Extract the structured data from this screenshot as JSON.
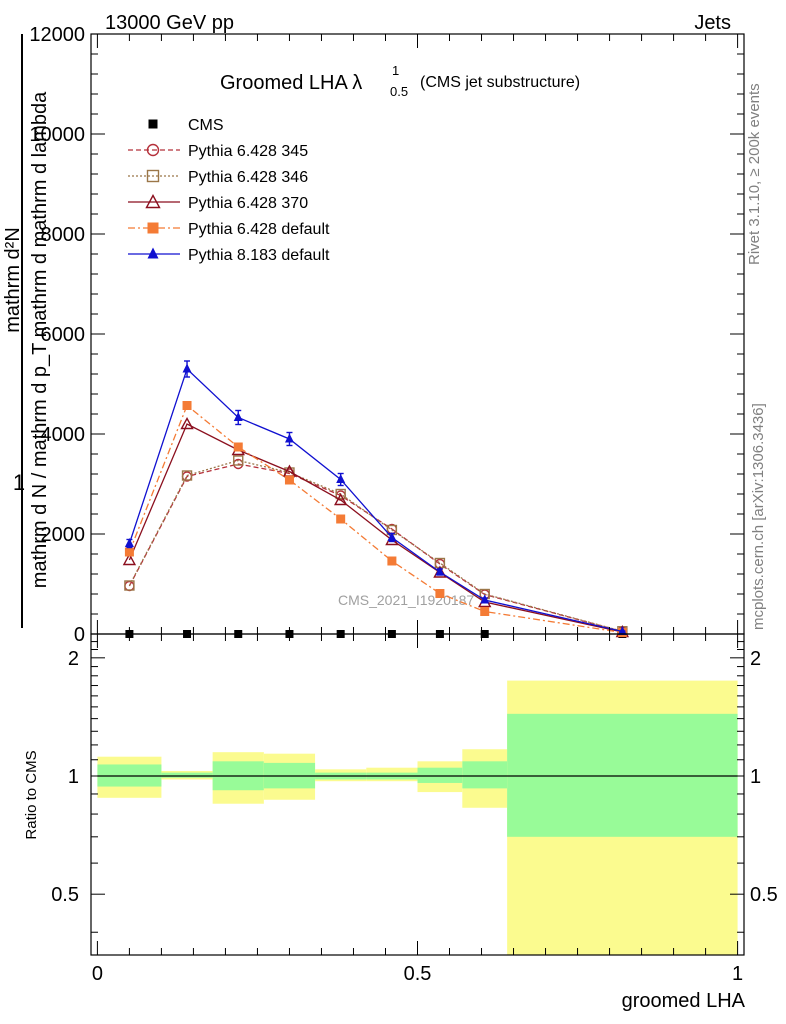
{
  "header": {
    "left": "13000 GeV pp",
    "right": "Jets"
  },
  "side_labels": {
    "rivet": "Rivet 3.1.10, ≥ 200k events",
    "mcplots": "mcplots.cern.ch [arXiv:1306.3436]"
  },
  "chart_data": [
    {
      "type": "line",
      "title": "Groomed LHA λ",
      "title_sup": "1",
      "title_sub": "0.5",
      "subtitle": "(CMS jet substructure)",
      "watermark": "CMS_2021_I1920187",
      "ylabel_main": "1",
      "ylabel_num": "mathrm d²N",
      "ylabel_den": "mathrm d N / mathrm d p_T mathrm d mathrm d lambda",
      "xlim": [
        -0.01,
        1.01
      ],
      "ylim": [
        0,
        12000
      ],
      "yticks": [
        0,
        2000,
        4000,
        6000,
        8000,
        10000,
        12000
      ],
      "ytick_labels": [
        "0",
        "2000",
        "4000",
        "6000",
        "8000",
        "10000",
        "12000"
      ],
      "x": [
        0.05,
        0.14,
        0.22,
        0.3,
        0.38,
        0.46,
        0.535,
        0.605,
        0.82
      ],
      "series": [
        {
          "name": "CMS",
          "color": "#000000",
          "marker": "square-filled",
          "dash": "none",
          "values": [
            0,
            0,
            0,
            0,
            0,
            0,
            0,
            0,
            0
          ]
        },
        {
          "name": "Pythia 6.428 345",
          "color": "#b5303a",
          "marker": "circle-open",
          "dash": "5,3",
          "values": [
            960,
            3150,
            3400,
            3210,
            2770,
            2100,
            1400,
            790,
            50
          ]
        },
        {
          "name": "Pythia 6.428 346",
          "color": "#9b7648",
          "marker": "square-open",
          "dash": "2,2",
          "values": [
            970,
            3170,
            3470,
            3230,
            2800,
            2080,
            1420,
            800,
            55
          ]
        },
        {
          "name": "Pythia 6.428 370",
          "color": "#8b0f1e",
          "marker": "triangle-open",
          "dash": "none",
          "values": [
            1480,
            4200,
            3680,
            3250,
            2680,
            1880,
            1230,
            640,
            40
          ]
        },
        {
          "name": "Pythia 6.428 default",
          "color": "#f47b35",
          "marker": "square-filled",
          "dash": "7,3,2,3",
          "values": [
            1640,
            4570,
            3740,
            3080,
            2300,
            1460,
            810,
            450,
            30
          ]
        },
        {
          "name": "Pythia 8.183 default",
          "color": "#1010d0",
          "marker": "triangle-filled",
          "dash": "none",
          "values": [
            1810,
            5300,
            4330,
            3900,
            3090,
            1930,
            1240,
            680,
            50
          ]
        }
      ],
      "errors": {
        "Pythia 8.183 default": [
          80,
          160,
          140,
          130,
          120,
          80,
          60,
          40,
          10
        ]
      }
    },
    {
      "type": "area",
      "ylabel": "Ratio to CMS",
      "xlabel": "groomed LHA",
      "xlim": [
        -0.01,
        1.01
      ],
      "ylim": [
        0.35,
        2.3
      ],
      "yticks": [
        0.5,
        1,
        2
      ],
      "ytick_labels": [
        "0.5",
        "1",
        "2"
      ],
      "xticks": [
        0,
        0.5,
        1
      ],
      "xtick_labels": [
        "0",
        "0.5",
        "1"
      ],
      "bin_edges": [
        0.0,
        0.1,
        0.18,
        0.26,
        0.34,
        0.42,
        0.5,
        0.57,
        0.64,
        1.0
      ],
      "inner_band": [
        [
          0.94,
          1.07
        ],
        [
          0.99,
          1.02
        ],
        [
          0.92,
          1.09
        ],
        [
          0.93,
          1.08
        ],
        [
          0.98,
          1.02
        ],
        [
          0.98,
          1.02
        ],
        [
          0.96,
          1.05
        ],
        [
          0.93,
          1.09
        ],
        [
          0.7,
          1.44
        ]
      ],
      "outer_band": [
        [
          0.88,
          1.12
        ],
        [
          0.98,
          1.03
        ],
        [
          0.85,
          1.15
        ],
        [
          0.87,
          1.14
        ],
        [
          0.97,
          1.04
        ],
        [
          0.97,
          1.05
        ],
        [
          0.91,
          1.09
        ],
        [
          0.83,
          1.17
        ],
        [
          0.3,
          1.75
        ]
      ],
      "band_colors": {
        "inner": "#98fb98",
        "outer": "#fbfb8f"
      }
    }
  ]
}
